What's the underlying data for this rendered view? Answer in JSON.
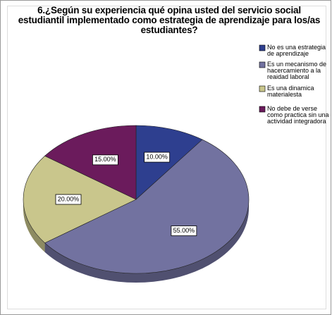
{
  "chart_data": {
    "type": "pie",
    "title": "6.¿Según su experiencia qué opina usted del servicio social estudiantil implementado como estrategia de aprendizaje para los/as estudiantes?",
    "categories": [
      "No es una estrategia de aprendizaje",
      "Es un mecanismo de hacercamiento a la reaidad laboral",
      "Es una dinamica materialesta",
      "No debe de verse como practica sin una actividad integradora"
    ],
    "values": [
      10,
      55,
      20,
      15
    ],
    "value_labels": [
      "10.00%",
      "55.00%",
      "20.00%",
      "15.00%"
    ],
    "colors": [
      "#2e3f8f",
      "#7272a0",
      "#c9c68c",
      "#6b1b5c"
    ],
    "legend": "right"
  }
}
